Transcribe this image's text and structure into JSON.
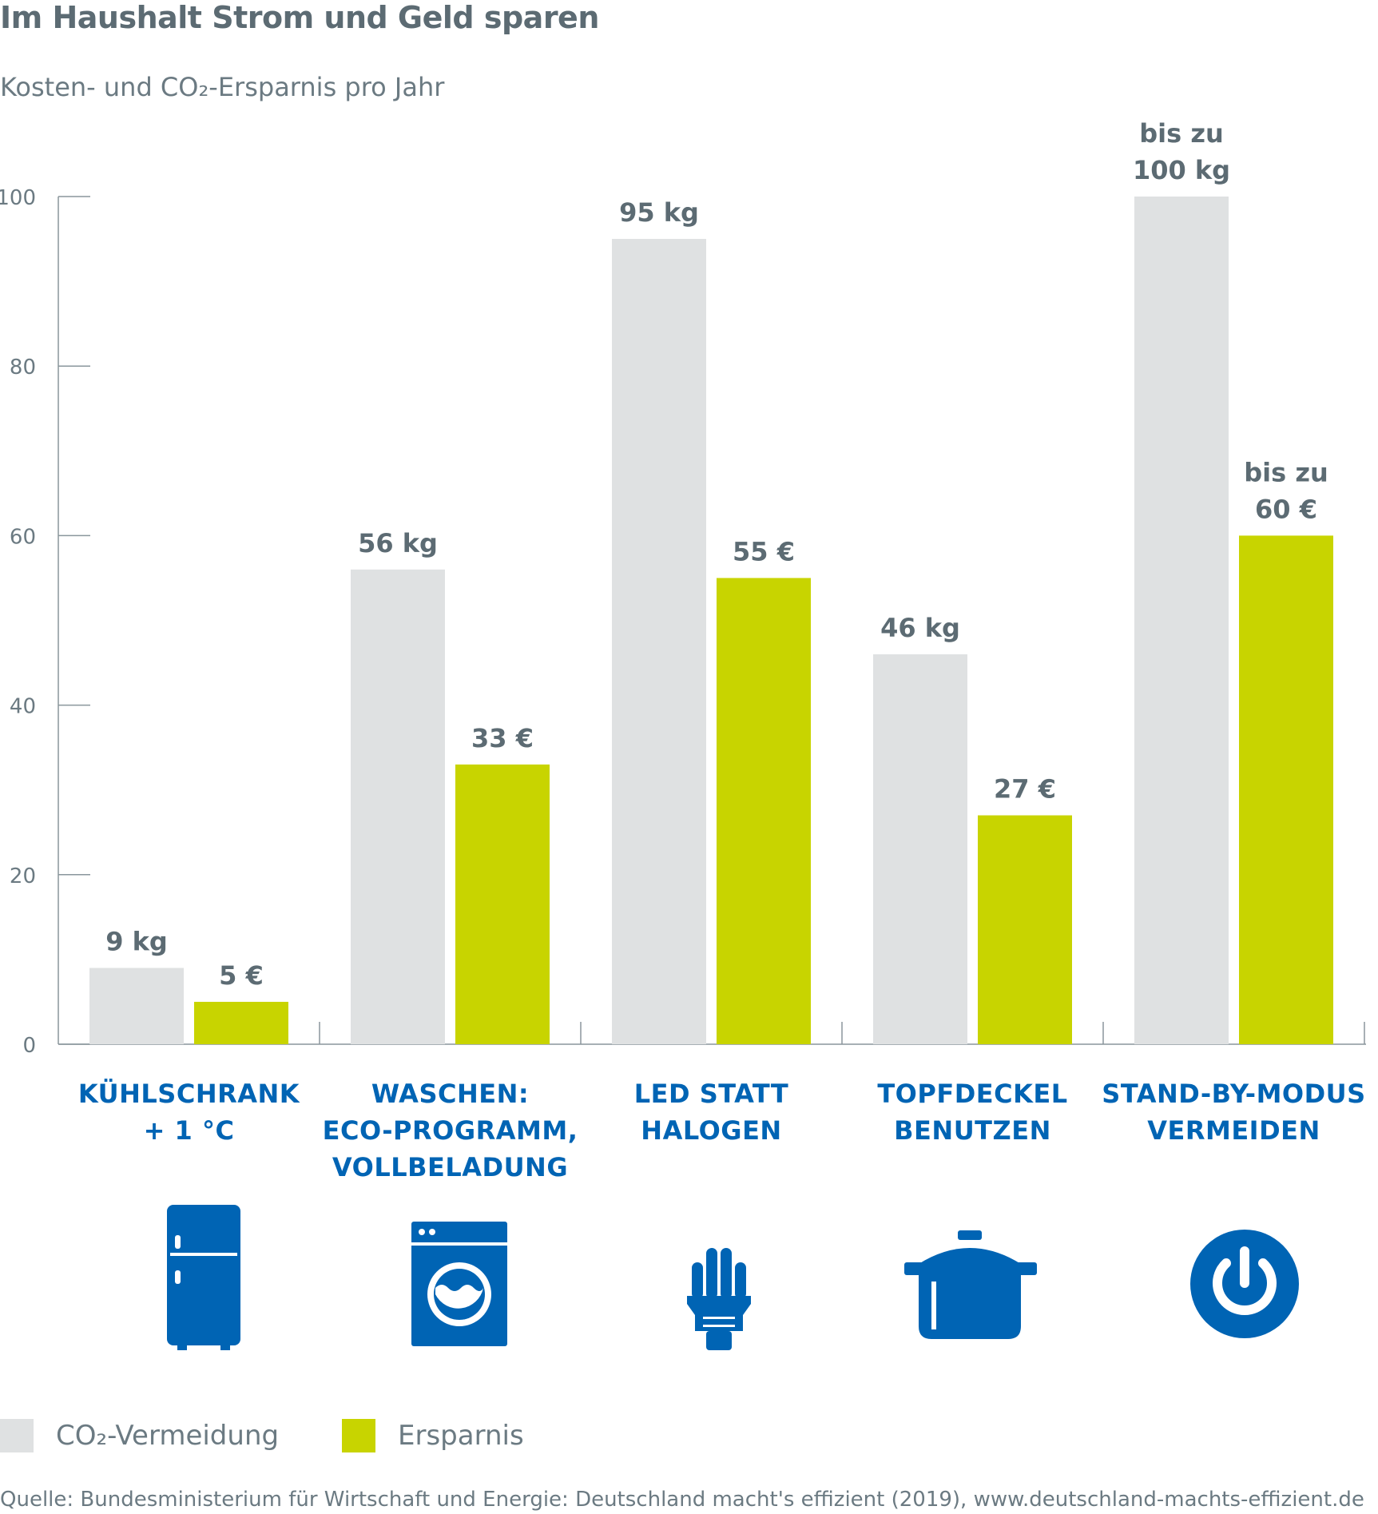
{
  "title": "Im Haushalt Strom und Geld sparen",
  "subtitle": "Kosten- und CO₂-Ersparnis pro Jahr",
  "colors": {
    "co2": "#dfe1e2",
    "savings": "#c8d400",
    "category": "#0064b4",
    "text": "#5c6b73",
    "axis": "#8a969c"
  },
  "chart_data": {
    "type": "bar",
    "categories": [
      [
        "KÜHLSCHRANK",
        "+ 1 °C"
      ],
      [
        "WASCHEN:",
        "ECO-PROGRAMM,",
        "VOLLBELADUNG"
      ],
      [
        "LED STATT",
        "HALOGEN"
      ],
      [
        "TOPFDECKEL",
        "BENUTZEN"
      ],
      [
        "STAND-BY-MODUS",
        "VERMEIDEN"
      ]
    ],
    "series": [
      {
        "name": "CO₂-Vermeidung",
        "values": [
          9,
          56,
          95,
          46,
          100
        ],
        "labels": [
          [
            "9 kg"
          ],
          [
            "56 kg"
          ],
          [
            "95 kg"
          ],
          [
            "46 kg"
          ],
          [
            "bis zu",
            "100 kg"
          ]
        ]
      },
      {
        "name": "Ersparnis",
        "values": [
          5,
          33,
          55,
          27,
          60
        ],
        "labels": [
          [
            "5 €"
          ],
          [
            "33 €"
          ],
          [
            "55 €"
          ],
          [
            "27 €"
          ],
          [
            "bis zu",
            "60 €"
          ]
        ]
      }
    ],
    "yticks": [
      "0",
      "20",
      "40",
      "60",
      "80",
      "100"
    ],
    "ylim": [
      0,
      100
    ],
    "legend": "bottom-left"
  },
  "icons": [
    "fridge-icon",
    "washing-machine-icon",
    "light-bulb-icon",
    "cooking-pot-icon",
    "power-icon"
  ],
  "legend": {
    "co2_label": "CO₂-Vermeidung",
    "savings_label": "Ersparnis"
  },
  "source": "Quelle: Bundesministerium für Wirtschaft und Energie: Deutschland macht's effizient (2019), www.deutschland-machts-effizient.de"
}
